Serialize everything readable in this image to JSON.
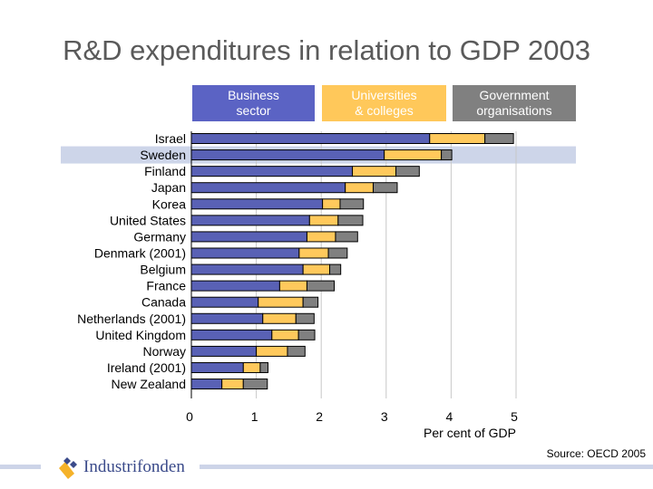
{
  "title": "R&D expenditures in relation to GDP 2003",
  "source": "Source: OECD 2005",
  "logo_text": "Industrifonden",
  "chart_data": {
    "type": "bar",
    "orientation": "horizontal",
    "stacked": true,
    "categories": [
      "Israel",
      "Sweden",
      "Finland",
      "Japan",
      "Korea",
      "United States",
      "Germany",
      "Denmark (2001)",
      "Belgium",
      "France",
      "Canada",
      "Netherlands (2001)",
      "United Kingdom",
      "Norway",
      "Ireland (2001)",
      "New Zealand"
    ],
    "highlighted_category": "Sweden",
    "series": [
      {
        "name": "Business sector",
        "color": "#5961b5",
        "values": [
          3.67,
          2.97,
          2.48,
          2.37,
          2.02,
          1.82,
          1.78,
          1.66,
          1.72,
          1.36,
          1.03,
          1.1,
          1.24,
          1.0,
          0.8,
          0.47
        ]
      },
      {
        "name": "Universities & colleges",
        "color": "#ffc95c",
        "values": [
          0.85,
          0.88,
          0.67,
          0.43,
          0.27,
          0.44,
          0.44,
          0.45,
          0.41,
          0.42,
          0.69,
          0.51,
          0.41,
          0.48,
          0.26,
          0.33
        ]
      },
      {
        "name": "Government organisations",
        "color": "#808080",
        "values": [
          0.44,
          0.16,
          0.36,
          0.37,
          0.36,
          0.38,
          0.34,
          0.29,
          0.17,
          0.42,
          0.23,
          0.28,
          0.25,
          0.27,
          0.12,
          0.37
        ]
      }
    ],
    "legend_labels": [
      "Business\nsector",
      "Universities\n& colleges",
      "Government\norganisations"
    ],
    "xlabel": "Per cent of GDP",
    "xlim": [
      0,
      5
    ],
    "xticks": [
      "0",
      "1",
      "2",
      "3",
      "4",
      "5"
    ],
    "grid": true,
    "legend_placement": "top"
  }
}
